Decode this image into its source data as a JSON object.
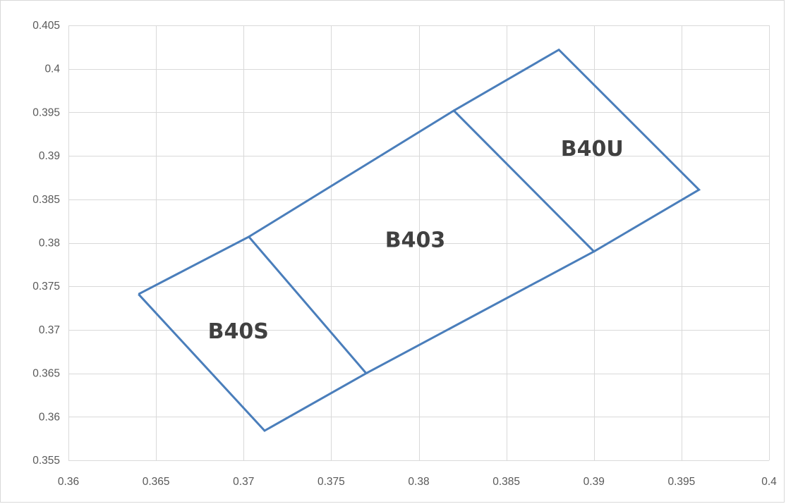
{
  "chart_data": {
    "type": "scatter",
    "style": "lines without markers",
    "title": "",
    "xlabel": "",
    "ylabel": "",
    "xlim": [
      0.36,
      0.4
    ],
    "ylim": [
      0.355,
      0.405
    ],
    "x_ticks": [
      0.36,
      0.365,
      0.37,
      0.375,
      0.38,
      0.385,
      0.39,
      0.395,
      0.4
    ],
    "y_ticks": [
      0.355,
      0.36,
      0.365,
      0.37,
      0.375,
      0.38,
      0.385,
      0.39,
      0.395,
      0.4,
      0.405
    ],
    "x_tick_labels": [
      "0.36",
      "0.365",
      "0.37",
      "0.375",
      "0.38",
      "0.385",
      "0.39",
      "0.395",
      "0.4"
    ],
    "y_tick_labels": [
      "0.355",
      "0.36",
      "0.365",
      "0.37",
      "0.375",
      "0.38",
      "0.385",
      "0.39",
      "0.395",
      "0.4",
      "0.405"
    ],
    "grid": true,
    "legend": "none",
    "line_color": "#4a7ebb",
    "series": [
      {
        "points": [
          {
            "x": 0.364,
            "y": 0.3741
          },
          {
            "x": 0.3712,
            "y": 0.3584
          },
          {
            "x": 0.377,
            "y": 0.365
          },
          {
            "x": 0.3703,
            "y": 0.3807
          },
          {
            "x": 0.364,
            "y": 0.3741
          }
        ]
      },
      {
        "points": [
          {
            "x": 0.3703,
            "y": 0.3807
          },
          {
            "x": 0.382,
            "y": 0.3952
          },
          {
            "x": 0.39,
            "y": 0.379
          },
          {
            "x": 0.377,
            "y": 0.365
          }
        ]
      },
      {
        "points": [
          {
            "x": 0.382,
            "y": 0.3952
          },
          {
            "x": 0.388,
            "y": 0.4022
          },
          {
            "x": 0.396,
            "y": 0.3861
          },
          {
            "x": 0.39,
            "y": 0.379
          }
        ]
      }
    ],
    "annotations": [
      {
        "text": "B40S",
        "x": 0.3697,
        "y": 0.3699
      },
      {
        "text": "B403",
        "x": 0.3798,
        "y": 0.3804
      },
      {
        "text": "B40U",
        "x": 0.3899,
        "y": 0.3909
      }
    ]
  }
}
